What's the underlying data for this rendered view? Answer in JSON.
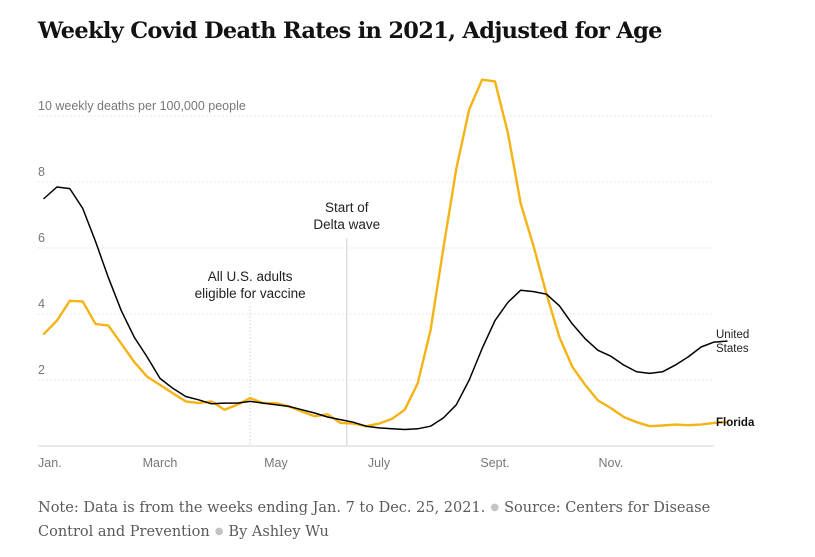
{
  "title": "Weekly Covid Death Rates in 2021, Adjusted for Age",
  "footer": {
    "note": "Note: Data is from the weeks ending Jan. 7 to Dec. 25, 2021.",
    "source": "Source: Centers for Disease Control and Prevention",
    "byline": "By Ashley Wu"
  },
  "chart_data": {
    "type": "line",
    "ylabel": "10 weekly deaths per 100,000 people",
    "ylim": [
      0,
      10
    ],
    "y_ticks": [
      {
        "value": 2,
        "label": "2"
      },
      {
        "value": 4,
        "label": "4"
      },
      {
        "value": 6,
        "label": "6"
      },
      {
        "value": 8,
        "label": "8"
      },
      {
        "value": 10,
        "label": "10 weekly deaths per 100,000 people"
      }
    ],
    "x_ticks": [
      {
        "week": 1,
        "label": "Jan."
      },
      {
        "week": 10,
        "label": "March"
      },
      {
        "week": 19,
        "label": "May"
      },
      {
        "week": 27,
        "label": "July"
      },
      {
        "week": 36,
        "label": "Sept."
      },
      {
        "week": 45,
        "label": "Nov."
      }
    ],
    "x_range": [
      1,
      52
    ],
    "grid": true,
    "annotations": [
      {
        "week": 17,
        "lines": [
          "All U.S. adults",
          "eligible for vaccine"
        ]
      },
      {
        "week": 24.5,
        "lines": [
          "Start of",
          "Delta wave"
        ]
      }
    ],
    "series": [
      {
        "name": "United States",
        "label_lines": [
          "United",
          "States"
        ],
        "color": "#000000",
        "values": [
          7.5,
          7.85,
          7.8,
          7.2,
          6.2,
          5.1,
          4.1,
          3.3,
          2.7,
          2.05,
          1.75,
          1.5,
          1.4,
          1.28,
          1.3,
          1.3,
          1.35,
          1.3,
          1.25,
          1.2,
          1.1,
          1.0,
          0.88,
          0.8,
          0.72,
          0.6,
          0.55,
          0.52,
          0.5,
          0.52,
          0.6,
          0.85,
          1.25,
          2.0,
          2.95,
          3.8,
          4.35,
          4.72,
          4.68,
          4.6,
          4.25,
          3.7,
          3.25,
          2.9,
          2.72,
          2.45,
          2.25,
          2.2,
          2.25,
          2.45,
          2.7,
          3.0,
          3.15,
          3.18
        ]
      },
      {
        "name": "Florida",
        "label_lines": [
          "Florida"
        ],
        "color": "#f5b316",
        "values": [
          3.4,
          3.8,
          4.4,
          4.38,
          3.7,
          3.65,
          3.1,
          2.55,
          2.1,
          1.85,
          1.6,
          1.35,
          1.3,
          1.35,
          1.1,
          1.25,
          1.45,
          1.3,
          1.3,
          1.2,
          1.05,
          0.9,
          0.96,
          0.7,
          0.68,
          0.6,
          0.68,
          0.82,
          1.1,
          1.9,
          3.5,
          6.0,
          8.4,
          10.2,
          11.1,
          11.05,
          9.5,
          7.35,
          6.05,
          4.6,
          3.3,
          2.4,
          1.85,
          1.38,
          1.15,
          0.88,
          0.72,
          0.6,
          0.62,
          0.65,
          0.63,
          0.65,
          0.7,
          0.72
        ]
      }
    ]
  }
}
